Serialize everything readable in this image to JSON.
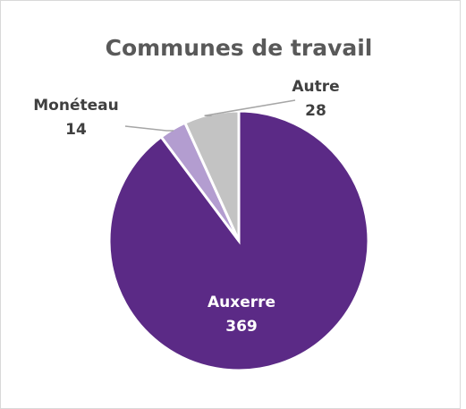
{
  "chart_data": {
    "type": "pie",
    "title": "Communes de travail",
    "categories": [
      "Auxerre",
      "Monéteau",
      "Autre"
    ],
    "values": [
      369,
      14,
      28
    ],
    "colors": [
      "#5b2a86",
      "#b39dd0",
      "#c3c3c3"
    ]
  }
}
